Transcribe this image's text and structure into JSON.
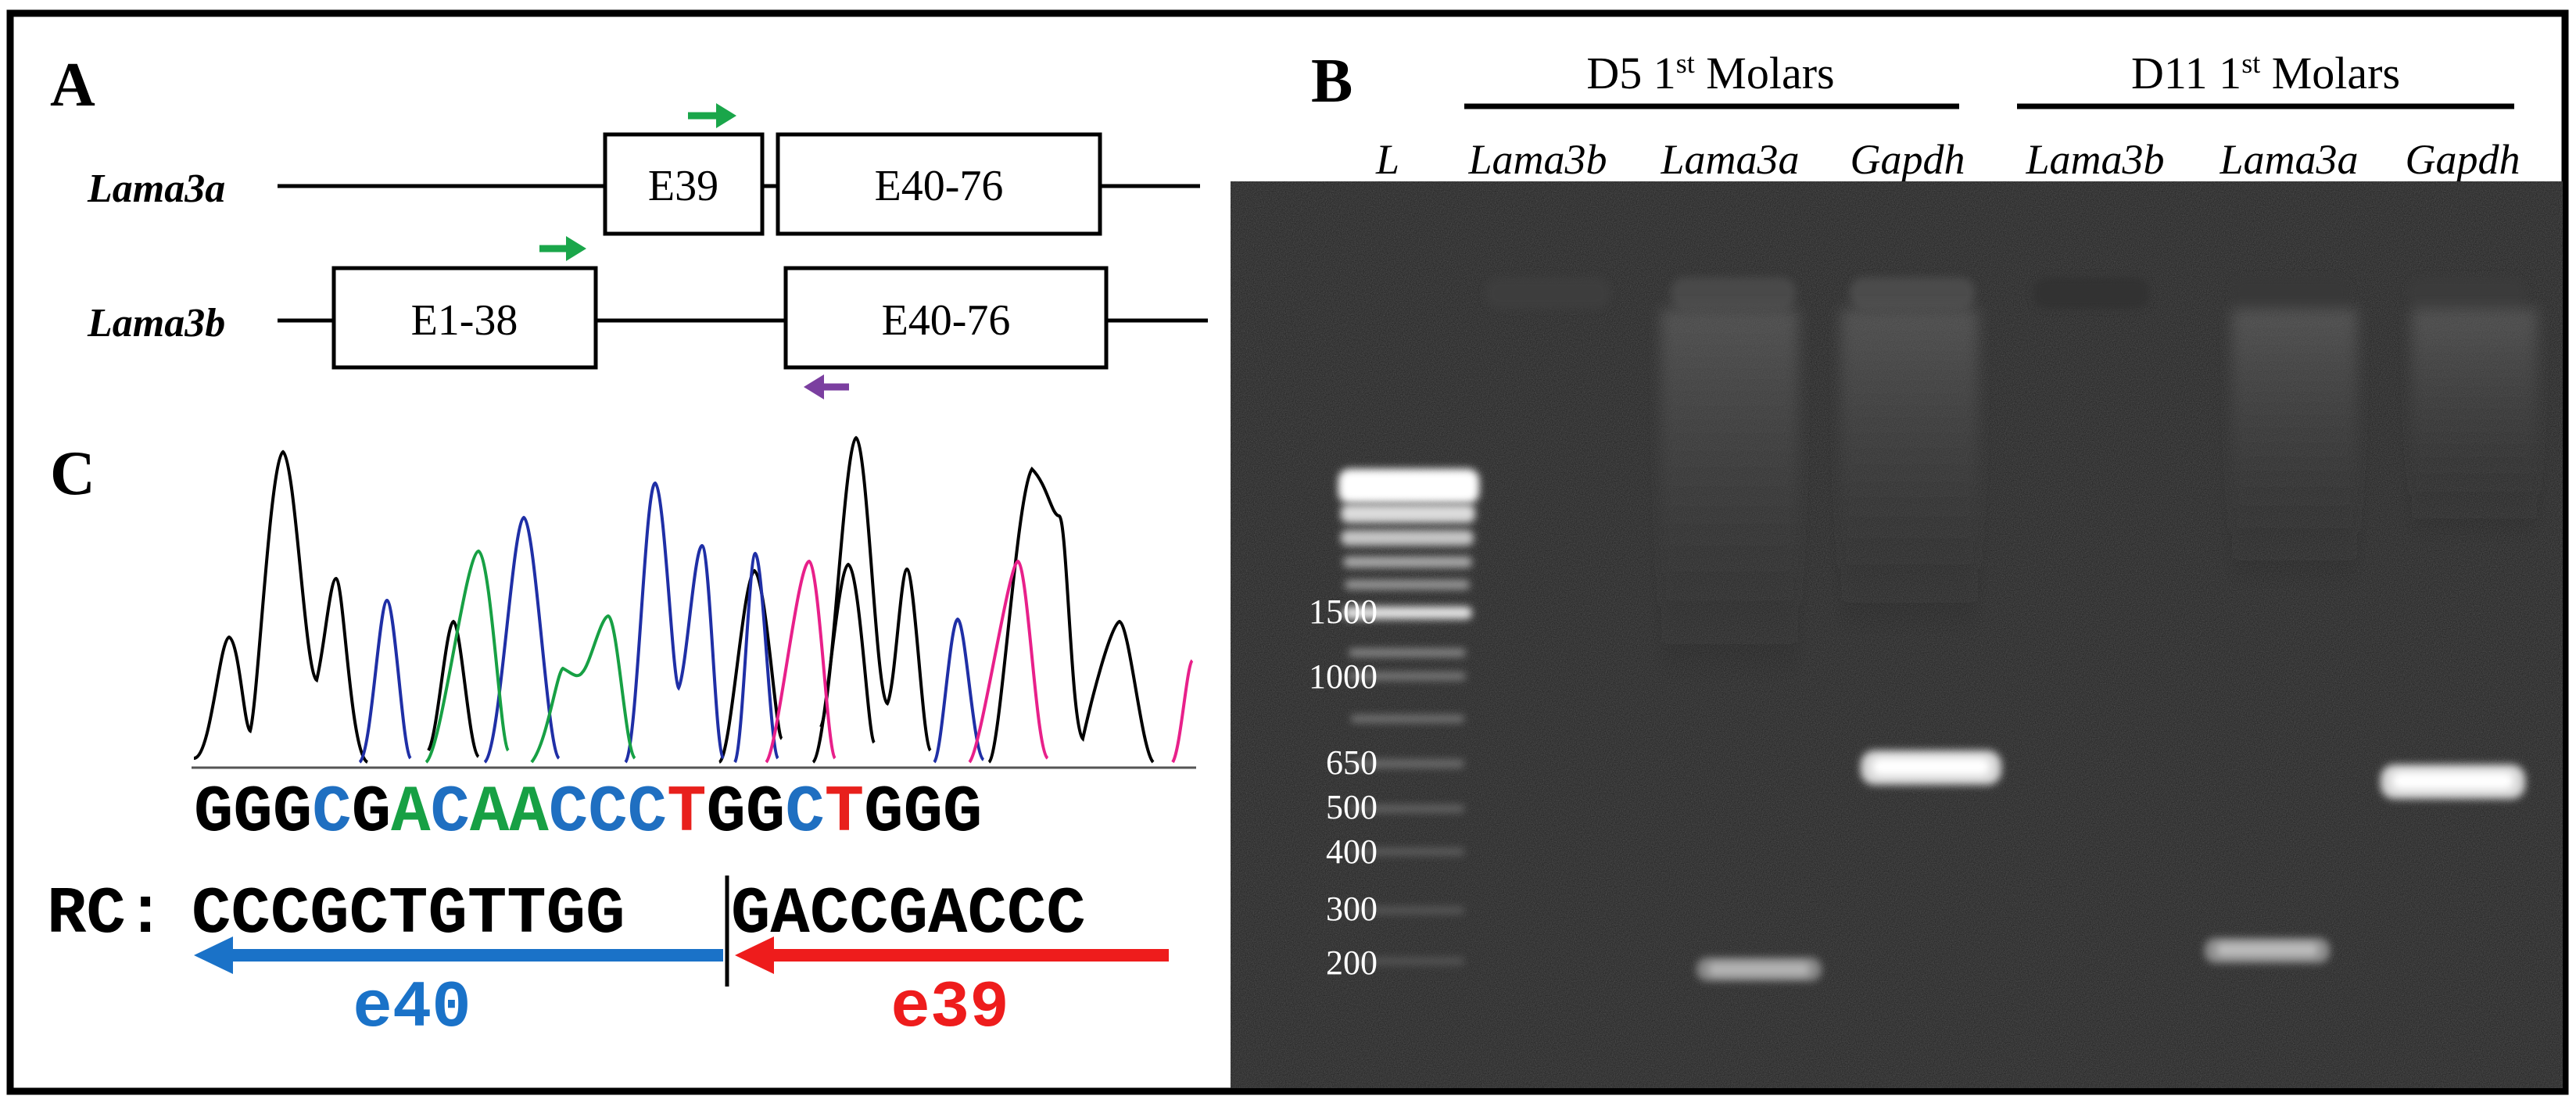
{
  "panels": {
    "a": "A",
    "b": "B",
    "c": "C"
  },
  "colors": {
    "forward_primer": "#1aa64a",
    "reverse_primer": "#7b3fa0",
    "base_A": "#17a044",
    "base_C": "#1f6fc1",
    "base_T": "#e8201c",
    "base_G": "#000000",
    "exon40": "#1a72c8",
    "exon39": "#ee1c1c",
    "gel_background": "#1b1b1b"
  },
  "diagram": {
    "lama3a_label": "Lama3a",
    "lama3b_label": "Lama3b",
    "lama3a_exons": [
      "E39",
      "E40-76"
    ],
    "lama3b_exons": [
      "E1-38",
      "E40-76"
    ]
  },
  "gel": {
    "ladder_lane": "L",
    "groups": [
      {
        "prefix": "D5 1",
        "sup": "st",
        "suffix": " Molars"
      },
      {
        "prefix": "D11 1",
        "sup": "st",
        "suffix": " Molars"
      }
    ],
    "lanes": [
      "Lama3b",
      "Lama3a",
      "Gapdh",
      "Lama3b",
      "Lama3a",
      "Gapdh"
    ],
    "ladder_sizes": [
      "1500",
      "1000",
      "650",
      "500",
      "400",
      "300",
      "200"
    ],
    "bands": [
      {
        "lane": "D5 Lama3a",
        "product": "~200"
      },
      {
        "lane": "D5 Gapdh",
        "product": "~600"
      },
      {
        "lane": "D11 Lama3a",
        "product": "~200"
      },
      {
        "lane": "D11 Gapdh",
        "product": "~550"
      }
    ]
  },
  "chromatogram": {
    "sequence": [
      {
        "b": "G",
        "c": "G"
      },
      {
        "b": "G",
        "c": "G"
      },
      {
        "b": "G",
        "c": "G"
      },
      {
        "b": "C",
        "c": "C"
      },
      {
        "b": "G",
        "c": "G"
      },
      {
        "b": "A",
        "c": "A"
      },
      {
        "b": "C",
        "c": "C"
      },
      {
        "b": "A",
        "c": "A"
      },
      {
        "b": "A",
        "c": "A"
      },
      {
        "b": "C",
        "c": "C"
      },
      {
        "b": "C",
        "c": "C"
      },
      {
        "b": "C",
        "c": "C"
      },
      {
        "b": "T",
        "c": "T"
      },
      {
        "b": "G",
        "c": "G"
      },
      {
        "b": "G",
        "c": "G"
      },
      {
        "b": "C",
        "c": "C"
      },
      {
        "b": "T",
        "c": "T"
      },
      {
        "b": "G",
        "c": "G"
      },
      {
        "b": "G",
        "c": "G"
      },
      {
        "b": "G",
        "c": "G"
      }
    ],
    "rc_label": "RC:",
    "rc_left": "CCCGCTGTTGG",
    "rc_right": "GACCGACCC",
    "exon_left": "e40",
    "exon_right": "e39"
  }
}
